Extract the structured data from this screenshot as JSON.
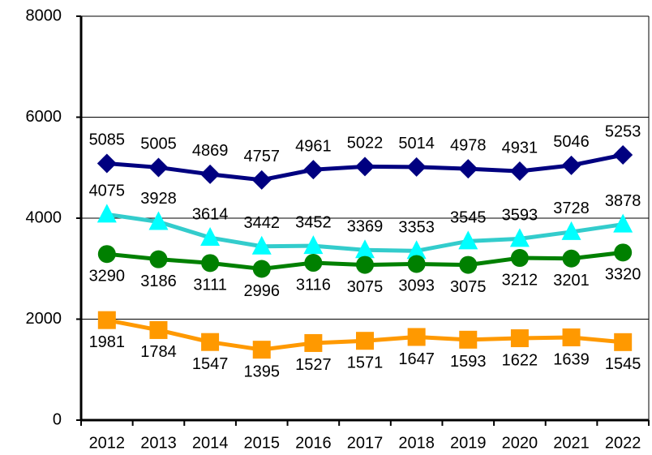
{
  "chart_data": {
    "type": "line",
    "categories": [
      "2012",
      "2013",
      "2014",
      "2015",
      "2016",
      "2017",
      "2018",
      "2019",
      "2020",
      "2021",
      "2022"
    ],
    "series": [
      {
        "color": "#000080",
        "marker_color": "#000080",
        "marker": "diamond",
        "label_position": "above",
        "values": [
          5085,
          5005,
          4869,
          4757,
          4961,
          5022,
          5014,
          4978,
          4931,
          5046,
          5253
        ]
      },
      {
        "color": "#33cccc",
        "marker_color": "#00ffff",
        "marker": "triangle",
        "label_position": "above",
        "values": [
          4075,
          3928,
          3614,
          3442,
          3452,
          3369,
          3353,
          3545,
          3593,
          3728,
          3878
        ]
      },
      {
        "color": "#008000",
        "marker_color": "#008000",
        "marker": "circle",
        "label_position": "below",
        "values": [
          3290,
          3186,
          3111,
          2996,
          3116,
          3075,
          3093,
          3075,
          3212,
          3201,
          3320
        ]
      },
      {
        "color": "#ff9900",
        "marker_color": "#ff9900",
        "marker": "square",
        "label_position": "below",
        "values": [
          1981,
          1784,
          1547,
          1395,
          1527,
          1571,
          1647,
          1593,
          1622,
          1639,
          1545
        ]
      }
    ],
    "ylim": [
      0,
      8000
    ],
    "yticks": [
      0,
      2000,
      4000,
      6000,
      8000
    ],
    "grid": true
  }
}
